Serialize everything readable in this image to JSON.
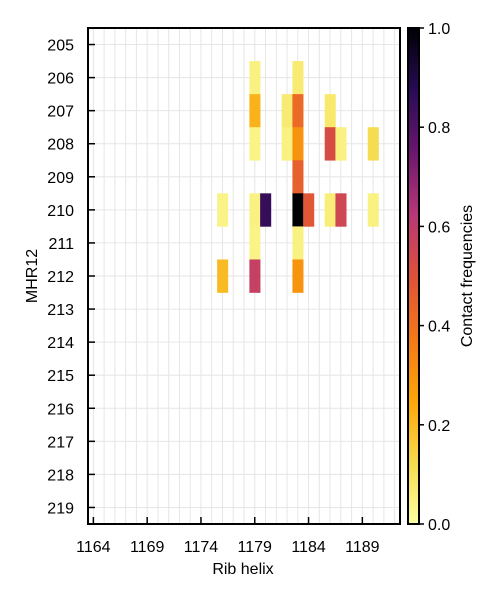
{
  "chart_data": {
    "type": "heatmap",
    "xlabel": "Rib helix",
    "ylabel": "MHR12",
    "colorbar_label": "Contact frequencies",
    "colormap": "inferno_r",
    "x_range": [
      1164,
      1192
    ],
    "y_range": [
      205,
      219
    ],
    "x_ticks": [
      1164,
      1169,
      1174,
      1179,
      1184,
      1189
    ],
    "y_ticks": [
      205,
      206,
      207,
      208,
      209,
      210,
      211,
      212,
      213,
      214,
      215,
      216,
      217,
      218,
      219
    ],
    "colorbar_ticks": [
      "0.0",
      "0.2",
      "0.4",
      "0.6",
      "0.8",
      "1.0"
    ],
    "value_range": [
      0,
      1
    ],
    "grid": true,
    "cells": [
      {
        "x": 1179,
        "y": 206,
        "value": 0.05
      },
      {
        "x": 1183,
        "y": 206,
        "value": 0.07
      },
      {
        "x": 1179,
        "y": 207,
        "value": 0.22
      },
      {
        "x": 1182,
        "y": 207,
        "value": 0.07
      },
      {
        "x": 1183,
        "y": 207,
        "value": 0.42
      },
      {
        "x": 1186,
        "y": 207,
        "value": 0.08
      },
      {
        "x": 1179,
        "y": 208,
        "value": 0.04
      },
      {
        "x": 1182,
        "y": 208,
        "value": 0.05
      },
      {
        "x": 1183,
        "y": 208,
        "value": 0.3
      },
      {
        "x": 1186,
        "y": 208,
        "value": 0.52
      },
      {
        "x": 1187,
        "y": 208,
        "value": 0.05
      },
      {
        "x": 1190,
        "y": 208,
        "value": 0.12
      },
      {
        "x": 1183,
        "y": 209,
        "value": 0.45
      },
      {
        "x": 1176,
        "y": 210,
        "value": 0.04
      },
      {
        "x": 1179,
        "y": 210,
        "value": 0.05
      },
      {
        "x": 1180,
        "y": 210,
        "value": 0.85
      },
      {
        "x": 1183,
        "y": 210,
        "value": 1.0
      },
      {
        "x": 1184,
        "y": 210,
        "value": 0.48
      },
      {
        "x": 1186,
        "y": 210,
        "value": 0.06
      },
      {
        "x": 1187,
        "y": 210,
        "value": 0.55
      },
      {
        "x": 1190,
        "y": 210,
        "value": 0.05
      },
      {
        "x": 1179,
        "y": 211,
        "value": 0.04
      },
      {
        "x": 1183,
        "y": 211,
        "value": 0.05
      },
      {
        "x": 1176,
        "y": 212,
        "value": 0.2
      },
      {
        "x": 1179,
        "y": 212,
        "value": 0.58
      },
      {
        "x": 1183,
        "y": 212,
        "value": 0.3
      }
    ]
  }
}
